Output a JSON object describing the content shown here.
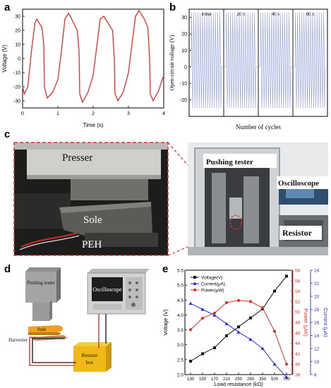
{
  "panels": {
    "a": "a",
    "b": "b",
    "c": "c",
    "d": "d",
    "e": "e"
  },
  "panel_a": {
    "ylabel": "Voltage (V)",
    "xlabel": "Time (s)",
    "xticks": [
      "0",
      "1",
      "2",
      "3",
      "4"
    ],
    "yticks": [
      "30",
      "20",
      "10",
      "0",
      "-10",
      "-20",
      "-30"
    ],
    "color": "#e0302b"
  },
  "panel_b": {
    "ylabel": "Open-circuit voltage (V)",
    "xlabel": "Number of cycles",
    "yticks": [
      "30",
      "20",
      "10",
      "0",
      "-10",
      "-20"
    ],
    "segments": [
      "initial",
      "20 k",
      "40 k",
      "60 k"
    ],
    "color": "#8d9ad8"
  },
  "panel_c": {
    "presser": "Presser",
    "sole": "Sole",
    "peh": "PEH",
    "pushing_tester": "Pushing tester",
    "oscilloscope": "Oscilloscope",
    "resistor": "Resistor"
  },
  "panel_d": {
    "pushing_tester": "Pushing tester",
    "oscilloscope": "Oscilloscope",
    "sole": "Sole",
    "harvester": "Harvester",
    "resistor_box": "Resistor box"
  },
  "chart_data": [
    {
      "type": "line",
      "panel": "a",
      "xlabel": "Time (s)",
      "ylabel": "Voltage (V)",
      "xlim": [
        0,
        4
      ],
      "ylim": [
        -35,
        35
      ],
      "x": [
        0.0,
        0.05,
        0.15,
        0.25,
        0.35,
        0.4,
        0.5,
        0.55,
        0.6,
        0.62,
        0.7,
        0.85,
        1.0,
        1.1,
        1.2,
        1.3,
        1.35,
        1.45,
        1.55,
        1.6,
        1.62,
        1.7,
        1.85,
        2.0,
        2.1,
        2.2,
        2.3,
        2.35,
        2.45,
        2.55,
        2.6,
        2.62,
        2.7,
        2.85,
        3.0,
        3.1,
        3.2,
        3.3,
        3.35,
        3.45,
        3.55,
        3.6,
        3.62,
        3.7,
        3.85,
        4.0
      ],
      "y": [
        -20,
        -25,
        -20,
        5,
        25,
        28,
        24,
        22,
        10,
        -20,
        -28,
        -24,
        -15,
        5,
        28,
        32,
        30,
        25,
        20,
        5,
        -25,
        -31,
        -24,
        -12,
        8,
        28,
        30,
        28,
        24,
        20,
        0,
        -25,
        -30,
        -24,
        -10,
        10,
        30,
        34,
        32,
        28,
        22,
        0,
        -25,
        -30,
        -23,
        -12
      ],
      "series": [
        {
          "name": "",
          "color": "#e0302b"
        }
      ]
    },
    {
      "type": "line",
      "panel": "b",
      "xlabel": "Number of cycles",
      "ylabel": "Open-circuit voltage (V)",
      "ylim": [
        -30,
        35
      ],
      "segments": [
        "initial",
        "20 k",
        "40 k",
        "60 k"
      ],
      "peaks_per_segment": 14,
      "y_max": 33,
      "y_min": -25,
      "series": [
        {
          "name": "",
          "color": "#8d9ad8"
        }
      ]
    },
    {
      "type": "line",
      "panel": "e",
      "xlabel": "Load resistance (kΩ)",
      "categories": [
        "130",
        "150",
        "170",
        "210",
        "250",
        "290",
        "350",
        "500",
        "700"
      ],
      "y_axes": {
        "left": {
          "label": "Voltage (V)",
          "ylim": [
            2.0,
            5.5
          ],
          "ticks": [
            "2.0",
            "2.5",
            "3.0",
            "3.5",
            "4.0",
            "4.5",
            "5.0",
            "5.5"
          ]
        },
        "right_power": {
          "label": "Power (μW)",
          "ylim": [
            38,
            58
          ],
          "ticks": [
            "38",
            "40",
            "42",
            "44",
            "46",
            "48",
            "50",
            "52",
            "54",
            "56",
            "58"
          ]
        },
        "right_current": {
          "label": "Current (μA)",
          "ylim": [
            8,
            24
          ],
          "ticks": [
            "8",
            "10",
            "12",
            "14",
            "16",
            "18",
            "20",
            "22",
            "24"
          ]
        }
      },
      "series": [
        {
          "name": "Voltage(V)",
          "axis": "left",
          "color": "#111111",
          "marker": "square",
          "values": [
            2.45,
            2.7,
            2.9,
            3.3,
            3.6,
            3.9,
            4.2,
            4.8,
            5.3
          ]
        },
        {
          "name": "Current(μA)",
          "axis": "right_current",
          "color": "#2a2ad6",
          "marker": "triangle",
          "values": [
            18.9,
            18.0,
            17.1,
            15.8,
            14.5,
            13.4,
            12.0,
            9.6,
            7.6
          ]
        },
        {
          "name": "Power(μW)",
          "axis": "right_power",
          "color": "#e0302b",
          "marker": "circle",
          "values": [
            46.6,
            48.8,
            49.8,
            51.8,
            52.2,
            52.0,
            50.8,
            46.3,
            40.0
          ]
        }
      ]
    }
  ]
}
